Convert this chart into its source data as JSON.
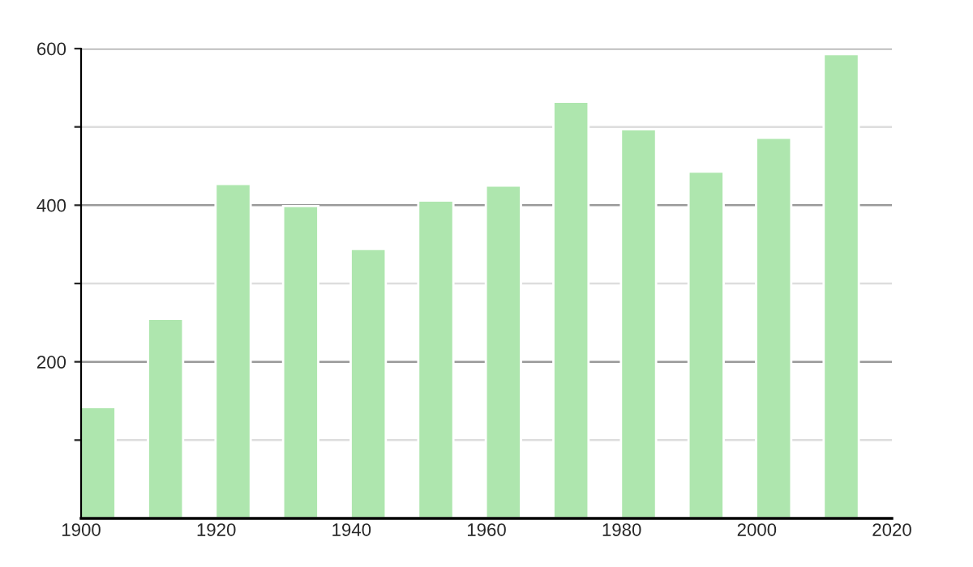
{
  "chart_data": {
    "type": "bar",
    "x": [
      1902.5,
      1912.5,
      1922.5,
      1932.5,
      1942.5,
      1952.5,
      1962.5,
      1972.5,
      1982.5,
      1992.5,
      2002.5,
      2012.5
    ],
    "values": [
      142,
      255,
      427,
      399,
      344,
      406,
      425,
      532,
      497,
      443,
      486,
      593
    ],
    "color": "#aee6ae",
    "xlim": [
      1900,
      2020
    ],
    "xticks": [
      1900,
      1920,
      1940,
      1960,
      1980,
      2000,
      2020
    ],
    "ylim": [
      0,
      600
    ],
    "yticks": [
      {
        "value": 100,
        "label": null
      },
      200,
      {
        "value": 300,
        "label": null
      },
      400,
      {
        "value": 500,
        "label": null
      },
      600
    ],
    "grid": "y"
  }
}
